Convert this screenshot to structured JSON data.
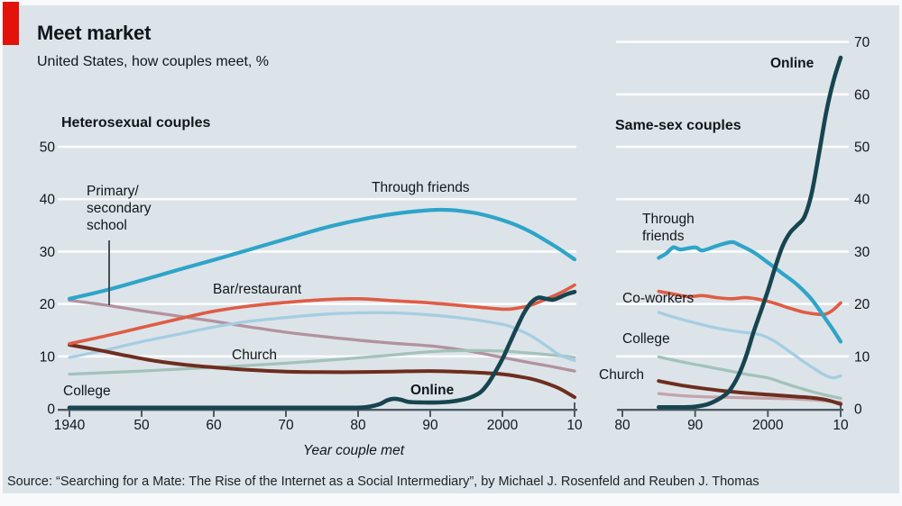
{
  "header": {
    "title": "Meet market",
    "subtitle": "United States, how couples meet, %"
  },
  "axis_title": "Year couple met",
  "source": "Source: “Searching for a Mate: The Rise of the Internet as a Social Intermediary”, by Michael J. Rosenfeld and Reuben J. Thomas",
  "style": {
    "accent_red": "#e3120b",
    "background": "#dce4e9",
    "gridline": "#ffffff",
    "axis": "#4e5a63",
    "text": "#121619"
  },
  "labels": {
    "panel_left": "Heterosexual couples",
    "panel_right": "Same-sex couples",
    "school": "Primary/\nsecondary\nschool",
    "through_friends_left": "Through friends",
    "bar": "Bar/restaurant",
    "church_left": "Church",
    "college_left": "College",
    "online_left": "Online",
    "online_right": "Online",
    "through_friends_right": "Through\nfriends",
    "coworkers": "Co-workers",
    "college_right": "College",
    "church_right": "Church"
  },
  "chart_data": [
    {
      "type": "line",
      "title": "Heterosexual couples",
      "xlabel": "Year couple met",
      "ylabel": "%",
      "xlim": [
        1940,
        2010
      ],
      "ylim": [
        0,
        50
      ],
      "y_ticks": [
        0,
        10,
        20,
        30,
        40,
        50
      ],
      "x_tick_years": [
        1940,
        1950,
        1960,
        1970,
        1980,
        1990,
        2000,
        2010
      ],
      "x_tick_labels": [
        "1940",
        "50",
        "60",
        "70",
        "80",
        "90",
        "2000",
        "10"
      ],
      "grid": "horizontal-white",
      "series": [
        {
          "name": "Primary/secondary school",
          "color": "#b2929e",
          "points": [
            [
              1940,
              20.7
            ],
            [
              1945,
              19.8
            ],
            [
              1950,
              18.7
            ],
            [
              1955,
              17.7
            ],
            [
              1960,
              16.7
            ],
            [
              1965,
              15.6
            ],
            [
              1970,
              14.6
            ],
            [
              1975,
              13.8
            ],
            [
              1980,
              13.1
            ],
            [
              1985,
              12.5
            ],
            [
              1990,
              12.0
            ],
            [
              1995,
              11.1
            ],
            [
              2000,
              9.8
            ],
            [
              2003,
              9.0
            ],
            [
              2005,
              8.5
            ],
            [
              2007,
              8.0
            ],
            [
              2010,
              7.2
            ]
          ]
        },
        {
          "name": "Co-workers (unlabeled)",
          "color": "#a3c2ba",
          "points": [
            [
              1940,
              6.6
            ],
            [
              1950,
              7.2
            ],
            [
              1960,
              7.9
            ],
            [
              1970,
              8.7
            ],
            [
              1980,
              9.7
            ],
            [
              1985,
              10.3
            ],
            [
              1990,
              10.9
            ],
            [
              1995,
              11.1
            ],
            [
              2000,
              11.0
            ],
            [
              2004,
              10.6
            ],
            [
              2008,
              10.1
            ],
            [
              2010,
              9.8
            ]
          ]
        },
        {
          "name": "College",
          "color": "#a6cde2",
          "points": [
            [
              1940,
              9.8
            ],
            [
              1945,
              11.2
            ],
            [
              1950,
              12.8
            ],
            [
              1955,
              14.2
            ],
            [
              1960,
              15.6
            ],
            [
              1965,
              16.7
            ],
            [
              1970,
              17.4
            ],
            [
              1975,
              18.0
            ],
            [
              1980,
              18.3
            ],
            [
              1985,
              18.3
            ],
            [
              1990,
              17.9
            ],
            [
              1995,
              17.2
            ],
            [
              2000,
              16.1
            ],
            [
              2002,
              15.2
            ],
            [
              2004,
              13.9
            ],
            [
              2006,
              12.1
            ],
            [
              2008,
              10.2
            ],
            [
              2010,
              9.2
            ]
          ]
        },
        {
          "name": "Church",
          "color": "#6e2d1e",
          "points": [
            [
              1940,
              12.2
            ],
            [
              1944,
              11.2
            ],
            [
              1948,
              10.1
            ],
            [
              1952,
              9.1
            ],
            [
              1956,
              8.4
            ],
            [
              1960,
              7.9
            ],
            [
              1965,
              7.4
            ],
            [
              1970,
              7.1
            ],
            [
              1975,
              7.0
            ],
            [
              1980,
              7.0
            ],
            [
              1985,
              7.1
            ],
            [
              1990,
              7.2
            ],
            [
              1995,
              7.0
            ],
            [
              2000,
              6.6
            ],
            [
              2002,
              6.2
            ],
            [
              2004,
              5.7
            ],
            [
              2006,
              4.9
            ],
            [
              2008,
              3.8
            ],
            [
              2010,
              2.2
            ]
          ]
        },
        {
          "name": "Bar/restaurant",
          "color": "#df5c45",
          "points": [
            [
              1940,
              12.4
            ],
            [
              1945,
              13.9
            ],
            [
              1950,
              15.5
            ],
            [
              1955,
              17.1
            ],
            [
              1960,
              18.6
            ],
            [
              1965,
              19.6
            ],
            [
              1970,
              20.3
            ],
            [
              1975,
              20.8
            ],
            [
              1980,
              21.0
            ],
            [
              1985,
              20.6
            ],
            [
              1990,
              20.2
            ],
            [
              1995,
              19.6
            ],
            [
              2000,
              19.0
            ],
            [
              2002,
              19.2
            ],
            [
              2004,
              19.8
            ],
            [
              2006,
              20.9
            ],
            [
              2008,
              22.1
            ],
            [
              2010,
              23.6
            ]
          ]
        },
        {
          "name": "Through friends",
          "color": "#2fa4c9",
          "points": [
            [
              1940,
              21.0
            ],
            [
              1945,
              22.6
            ],
            [
              1950,
              24.5
            ],
            [
              1955,
              26.5
            ],
            [
              1960,
              28.4
            ],
            [
              1965,
              30.4
            ],
            [
              1970,
              32.4
            ],
            [
              1975,
              34.4
            ],
            [
              1980,
              36.0
            ],
            [
              1985,
              37.2
            ],
            [
              1990,
              37.9
            ],
            [
              1993,
              37.9
            ],
            [
              1996,
              37.4
            ],
            [
              1998,
              36.8
            ],
            [
              2000,
              36.0
            ],
            [
              2002,
              35.0
            ],
            [
              2004,
              33.7
            ],
            [
              2006,
              32.1
            ],
            [
              2008,
              30.4
            ],
            [
              2010,
              28.5
            ]
          ]
        },
        {
          "name": "Online",
          "color": "#17454f",
          "points": [
            [
              1940,
              0.2
            ],
            [
              1970,
              0.2
            ],
            [
              1978,
              0.2
            ],
            [
              1981,
              0.3
            ],
            [
              1983,
              0.9
            ],
            [
              1984,
              1.6
            ],
            [
              1985,
              1.9
            ],
            [
              1986,
              1.7
            ],
            [
              1987,
              1.3
            ],
            [
              1989,
              1.2
            ],
            [
              1991,
              1.2
            ],
            [
              1993,
              1.4
            ],
            [
              1995,
              1.9
            ],
            [
              1996,
              2.4
            ],
            [
              1997,
              3.2
            ],
            [
              1998,
              4.8
            ],
            [
              1999,
              7.0
            ],
            [
              2000,
              9.5
            ],
            [
              2001,
              12.5
            ],
            [
              2002,
              15.5
            ],
            [
              2003,
              18.3
            ],
            [
              2004,
              20.3
            ],
            [
              2005,
              21.2
            ],
            [
              2006,
              21.0
            ],
            [
              2007,
              20.8
            ],
            [
              2008,
              21.3
            ],
            [
              2009,
              21.9
            ],
            [
              2010,
              22.3
            ]
          ]
        }
      ]
    },
    {
      "type": "line",
      "title": "Same-sex couples",
      "xlabel": "Year couple met",
      "ylabel": "%",
      "xlim": [
        1980,
        2010
      ],
      "ylim": [
        0,
        70
      ],
      "y_ticks": [
        0,
        10,
        20,
        30,
        40,
        50,
        60,
        70
      ],
      "x_tick_years": [
        1980,
        1990,
        2000,
        2010
      ],
      "x_tick_labels": [
        "80",
        "90",
        "2000",
        "10"
      ],
      "grid": "horizontal-white",
      "series": [
        {
          "name": "unlabeled (pink)",
          "color": "#c4a3ab",
          "points": [
            [
              1985,
              2.9
            ],
            [
              1988,
              2.5
            ],
            [
              1991,
              2.3
            ],
            [
              1994,
              2.2
            ],
            [
              1997,
              2.1
            ],
            [
              2000,
              2.0
            ],
            [
              2003,
              1.9
            ],
            [
              2006,
              1.7
            ],
            [
              2008,
              1.5
            ],
            [
              2010,
              1.2
            ]
          ]
        },
        {
          "name": "unlabeled (pale teal)",
          "color": "#a3c2ba",
          "points": [
            [
              1985,
              9.9
            ],
            [
              1988,
              9.0
            ],
            [
              1991,
              8.2
            ],
            [
              1994,
              7.4
            ],
            [
              1997,
              6.6
            ],
            [
              2000,
              5.9
            ],
            [
              2002,
              5.0
            ],
            [
              2004,
              4.1
            ],
            [
              2006,
              3.3
            ],
            [
              2008,
              2.6
            ],
            [
              2010,
              2.0
            ]
          ]
        },
        {
          "name": "College",
          "color": "#a6cde2",
          "points": [
            [
              1985,
              18.4
            ],
            [
              1987,
              17.5
            ],
            [
              1990,
              16.4
            ],
            [
              1993,
              15.4
            ],
            [
              1996,
              14.7
            ],
            [
              1999,
              14.1
            ],
            [
              2001,
              12.8
            ],
            [
              2003,
              10.9
            ],
            [
              2005,
              8.9
            ],
            [
              2007,
              7.1
            ],
            [
              2008,
              6.3
            ],
            [
              2009,
              5.9
            ],
            [
              2010,
              6.3
            ]
          ]
        },
        {
          "name": "Church",
          "color": "#6e2d1e",
          "points": [
            [
              1985,
              5.3
            ],
            [
              1988,
              4.5
            ],
            [
              1991,
              3.9
            ],
            [
              1994,
              3.4
            ],
            [
              1997,
              3.0
            ],
            [
              2000,
              2.7
            ],
            [
              2003,
              2.4
            ],
            [
              2006,
              2.1
            ],
            [
              2008,
              1.7
            ],
            [
              2010,
              0.9
            ]
          ]
        },
        {
          "name": "Co-workers",
          "color": "#df5c45",
          "points": [
            [
              1985,
              22.4
            ],
            [
              1987,
              21.9
            ],
            [
              1989,
              21.4
            ],
            [
              1991,
              21.6
            ],
            [
              1993,
              21.2
            ],
            [
              1995,
              21.0
            ],
            [
              1997,
              21.2
            ],
            [
              1999,
              20.8
            ],
            [
              2001,
              20.1
            ],
            [
              2003,
              19.2
            ],
            [
              2005,
              18.4
            ],
            [
              2007,
              18.0
            ],
            [
              2008,
              18.1
            ],
            [
              2009,
              18.9
            ],
            [
              2010,
              20.2
            ]
          ]
        },
        {
          "name": "Through friends",
          "color": "#2fa4c9",
          "points": [
            [
              1985,
              28.8
            ],
            [
              1986,
              29.6
            ],
            [
              1987,
              30.8
            ],
            [
              1988,
              30.4
            ],
            [
              1990,
              30.8
            ],
            [
              1991,
              30.2
            ],
            [
              1993,
              31.1
            ],
            [
              1995,
              31.8
            ],
            [
              1996,
              31.3
            ],
            [
              1998,
              29.9
            ],
            [
              2000,
              27.9
            ],
            [
              2002,
              25.8
            ],
            [
              2004,
              23.7
            ],
            [
              2006,
              20.9
            ],
            [
              2008,
              17.0
            ],
            [
              2009,
              15.0
            ],
            [
              2010,
              12.8
            ]
          ]
        },
        {
          "name": "Online",
          "color": "#17454f",
          "points": [
            [
              1985,
              0.3
            ],
            [
              1988,
              0.3
            ],
            [
              1990,
              0.4
            ],
            [
              1992,
              1.0
            ],
            [
              1994,
              2.5
            ],
            [
              1995,
              4.0
            ],
            [
              1996,
              6.5
            ],
            [
              1997,
              10.0
            ],
            [
              1998,
              14.5
            ],
            [
              1999,
              18.5
            ],
            [
              2000,
              22.5
            ],
            [
              2001,
              27.0
            ],
            [
              2002,
              31.0
            ],
            [
              2003,
              33.5
            ],
            [
              2004,
              35.0
            ],
            [
              2005,
              36.6
            ],
            [
              2006,
              41.0
            ],
            [
              2007,
              48.5
            ],
            [
              2008,
              56.5
            ],
            [
              2009,
              62.5
            ],
            [
              2010,
              67.0
            ]
          ]
        }
      ]
    }
  ]
}
